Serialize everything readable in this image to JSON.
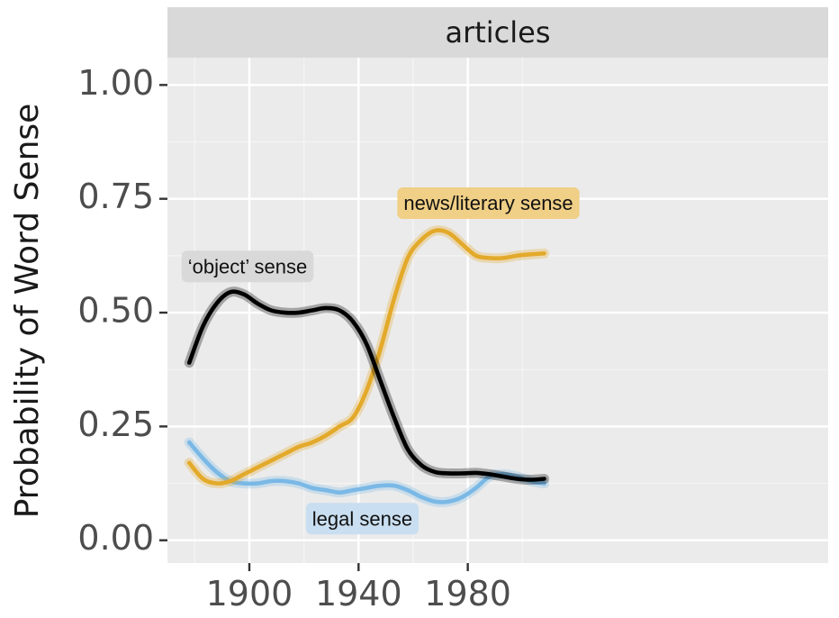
{
  "chart_data": {
    "type": "line",
    "facet_label": "articles",
    "ylabel": "Probability of Word Sense",
    "xlabel": "",
    "xlim": [
      1870,
      2112
    ],
    "ylim": [
      -0.05,
      1.06
    ],
    "x_ticks": [
      1900,
      1940,
      1980
    ],
    "y_ticks": [
      0.0,
      0.25,
      0.5,
      0.75,
      1.0
    ],
    "y_tick_labels": [
      "0.00",
      "0.25",
      "0.50",
      "0.75",
      "1.00"
    ],
    "grid": true,
    "series": [
      {
        "key": "object",
        "color": "#000000",
        "x": [
          1878,
          1883,
          1888,
          1893,
          1898,
          1903,
          1908,
          1913,
          1918,
          1923,
          1928,
          1933,
          1938,
          1943,
          1948,
          1953,
          1958,
          1963,
          1968,
          1973,
          1978,
          1983,
          1988,
          1993,
          1998,
          2003,
          2008
        ],
        "values": [
          0.39,
          0.47,
          0.52,
          0.545,
          0.54,
          0.52,
          0.505,
          0.5,
          0.5,
          0.505,
          0.51,
          0.505,
          0.48,
          0.43,
          0.35,
          0.27,
          0.2,
          0.165,
          0.15,
          0.147,
          0.147,
          0.148,
          0.145,
          0.14,
          0.135,
          0.133,
          0.135
        ]
      },
      {
        "key": "news",
        "color": "#E3A92A",
        "x": [
          1878,
          1883,
          1888,
          1893,
          1898,
          1903,
          1908,
          1913,
          1918,
          1923,
          1928,
          1933,
          1938,
          1943,
          1948,
          1953,
          1958,
          1963,
          1968,
          1973,
          1978,
          1983,
          1988,
          1993,
          1998,
          2003,
          2008
        ],
        "values": [
          0.17,
          0.135,
          0.125,
          0.13,
          0.145,
          0.16,
          0.175,
          0.19,
          0.205,
          0.215,
          0.23,
          0.25,
          0.27,
          0.33,
          0.42,
          0.53,
          0.62,
          0.66,
          0.68,
          0.675,
          0.65,
          0.625,
          0.62,
          0.62,
          0.625,
          0.628,
          0.63
        ]
      },
      {
        "key": "legal",
        "color": "#7AB8E6",
        "x": [
          1878,
          1883,
          1888,
          1893,
          1898,
          1903,
          1908,
          1913,
          1918,
          1923,
          1928,
          1933,
          1938,
          1943,
          1948,
          1953,
          1958,
          1963,
          1968,
          1973,
          1978,
          1983,
          1988,
          1993,
          1998,
          2003,
          2008
        ],
        "values": [
          0.215,
          0.18,
          0.15,
          0.13,
          0.125,
          0.125,
          0.13,
          0.13,
          0.125,
          0.115,
          0.11,
          0.105,
          0.11,
          0.115,
          0.12,
          0.12,
          0.11,
          0.095,
          0.085,
          0.085,
          0.095,
          0.115,
          0.14,
          0.145,
          0.14,
          0.13,
          0.125
        ]
      }
    ],
    "annotations": [
      {
        "key": "object",
        "text": "‘object’ sense",
        "x": 1877.5,
        "y": 0.598,
        "bg": "#D9D9D9"
      },
      {
        "key": "news",
        "text": "news/literary sense",
        "x": 1956.5,
        "y": 0.737,
        "bg": "#F0CF86"
      },
      {
        "key": "legal",
        "text": "legal sense",
        "x": 1923,
        "y": 0.044,
        "bg": "#C9DEF0"
      }
    ]
  }
}
